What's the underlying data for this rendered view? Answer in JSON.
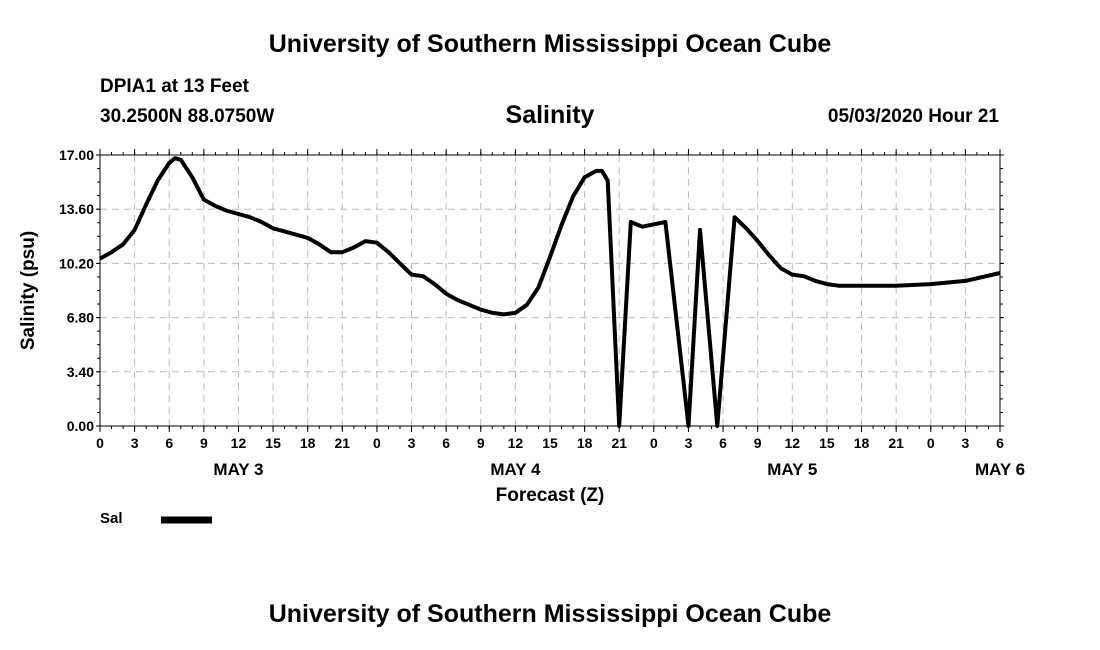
{
  "header": {
    "title_top": "University of Southern Mississippi Ocean Cube",
    "station": "DPIA1 at 13 Feet",
    "coords": "30.2500N 88.0750W",
    "run_time": "05/03/2020 Hour 21",
    "title_bottom": "University of Southern Mississippi Ocean Cube"
  },
  "colors": {
    "line": "#000000",
    "grid": "#bbbbbb",
    "background": "#ffffff"
  },
  "chart_data": {
    "type": "line",
    "title": "Salinity",
    "xlabel": "Forecast (Z)",
    "ylabel": "Salinity (psu)",
    "ylim": [
      0,
      17
    ],
    "yticks": [
      "0.00",
      "3.40",
      "6.80",
      "10.20",
      "13.60",
      "17.00"
    ],
    "xlim": [
      "2020-05-03T00:00Z",
      "2020-05-06T06:00Z"
    ],
    "xtick_labels": [
      "0",
      "3",
      "6",
      "9",
      "12",
      "15",
      "18",
      "21",
      "0",
      "3",
      "6",
      "9",
      "12",
      "15",
      "18",
      "21",
      "0",
      "3",
      "6",
      "9",
      "12",
      "15",
      "18",
      "21",
      "0",
      "3",
      "6"
    ],
    "day_labels": [
      {
        "label": "MAY 3",
        "at": "2020-05-03T12:00Z"
      },
      {
        "label": "MAY 4",
        "at": "2020-05-04T12:00Z"
      },
      {
        "label": "MAY 5",
        "at": "2020-05-05T12:00Z"
      },
      {
        "label": "MAY 6",
        "at": "2020-05-06T06:00Z"
      }
    ],
    "grid": true,
    "legend": "bottom-left",
    "series": [
      {
        "name": "Sal",
        "x": [
          "2020-05-03T00:00Z",
          "2020-05-03T01:00Z",
          "2020-05-03T02:00Z",
          "2020-05-03T03:00Z",
          "2020-05-03T04:00Z",
          "2020-05-03T05:00Z",
          "2020-05-03T06:00Z",
          "2020-05-03T06:30Z",
          "2020-05-03T07:00Z",
          "2020-05-03T08:00Z",
          "2020-05-03T09:00Z",
          "2020-05-03T10:00Z",
          "2020-05-03T11:00Z",
          "2020-05-03T12:00Z",
          "2020-05-03T13:00Z",
          "2020-05-03T14:00Z",
          "2020-05-03T15:00Z",
          "2020-05-03T17:00Z",
          "2020-05-03T18:00Z",
          "2020-05-03T19:00Z",
          "2020-05-03T20:00Z",
          "2020-05-03T21:00Z",
          "2020-05-03T22:00Z",
          "2020-05-03T23:00Z",
          "2020-05-04T00:00Z",
          "2020-05-04T01:00Z",
          "2020-05-04T02:00Z",
          "2020-05-04T03:00Z",
          "2020-05-04T04:00Z",
          "2020-05-04T05:00Z",
          "2020-05-04T06:00Z",
          "2020-05-04T07:00Z",
          "2020-05-04T08:00Z",
          "2020-05-04T09:00Z",
          "2020-05-04T10:00Z",
          "2020-05-04T11:00Z",
          "2020-05-04T12:00Z",
          "2020-05-04T13:00Z",
          "2020-05-04T14:00Z",
          "2020-05-04T15:00Z",
          "2020-05-04T16:00Z",
          "2020-05-04T17:00Z",
          "2020-05-04T18:00Z",
          "2020-05-04T19:00Z",
          "2020-05-04T19:30Z",
          "2020-05-04T20:00Z",
          "2020-05-04T21:00Z",
          "2020-05-04T22:00Z",
          "2020-05-04T23:00Z",
          "2020-05-05T01:00Z",
          "2020-05-05T03:00Z",
          "2020-05-05T04:00Z",
          "2020-05-05T05:30Z",
          "2020-05-05T07:00Z",
          "2020-05-05T08:00Z",
          "2020-05-05T09:00Z",
          "2020-05-05T10:00Z",
          "2020-05-05T11:00Z",
          "2020-05-05T12:00Z",
          "2020-05-05T13:00Z",
          "2020-05-05T14:00Z",
          "2020-05-05T15:00Z",
          "2020-05-05T16:00Z",
          "2020-05-05T17:00Z",
          "2020-05-05T18:00Z",
          "2020-05-05T21:00Z",
          "2020-05-06T00:00Z",
          "2020-05-06T03:00Z",
          "2020-05-06T06:00Z"
        ],
        "y": [
          10.5,
          10.9,
          11.4,
          12.3,
          13.9,
          15.4,
          16.5,
          16.8,
          16.7,
          15.6,
          14.2,
          13.8,
          13.5,
          13.3,
          13.1,
          12.8,
          12.4,
          12.0,
          11.8,
          11.4,
          10.9,
          10.9,
          11.2,
          11.6,
          11.5,
          10.9,
          10.2,
          9.5,
          9.4,
          8.9,
          8.3,
          7.9,
          7.6,
          7.3,
          7.1,
          7.0,
          7.1,
          7.6,
          8.7,
          10.6,
          12.6,
          14.4,
          15.6,
          16.0,
          16.0,
          15.4,
          0.0,
          12.8,
          12.5,
          12.8,
          0.0,
          12.3,
          0.0,
          13.1,
          12.4,
          11.6,
          10.7,
          9.9,
          9.5,
          9.4,
          9.1,
          8.9,
          8.8,
          8.8,
          8.8,
          8.8,
          8.9,
          9.1,
          9.6
        ]
      }
    ]
  }
}
